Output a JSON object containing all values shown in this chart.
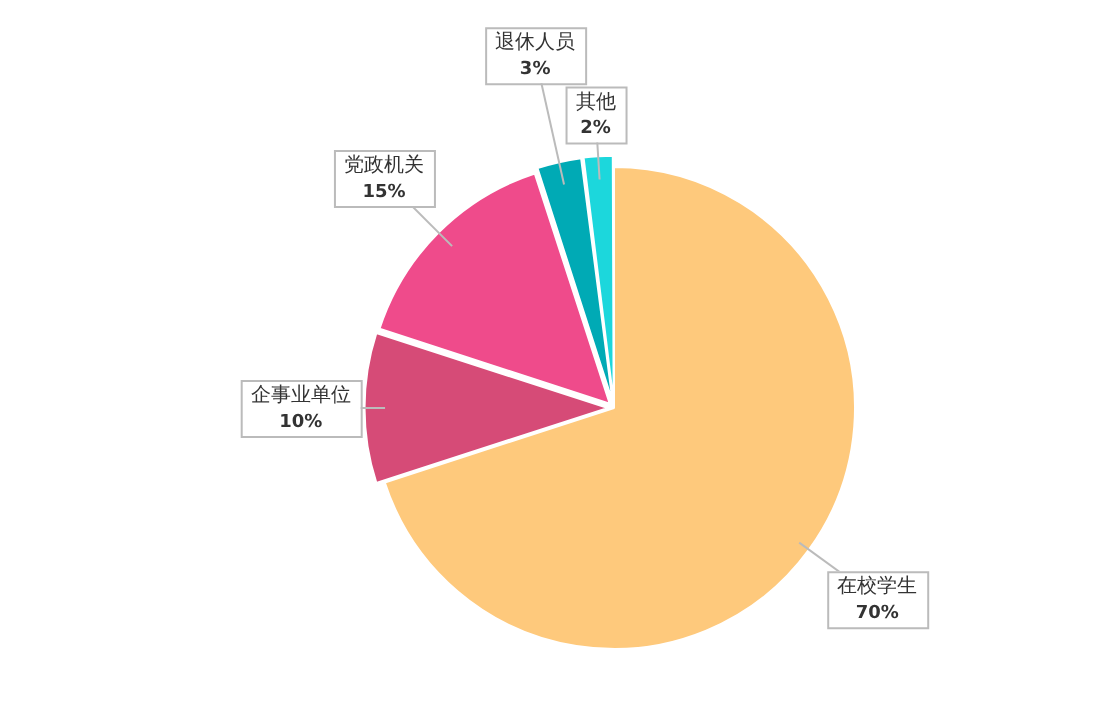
{
  "chart_data": {
    "type": "pie",
    "categories": [
      "在校学生",
      "企事业单位",
      "党政机关",
      "退休人员",
      "其他"
    ],
    "values": [
      70,
      10,
      15,
      3,
      2
    ],
    "value_labels": [
      "70%",
      "10%",
      "15%",
      "3%",
      "2%"
    ],
    "colors": [
      "#fec97c",
      "#d64b77",
      "#ef4b8b",
      "#00aab5",
      "#1cd7dc"
    ],
    "legend": false
  }
}
